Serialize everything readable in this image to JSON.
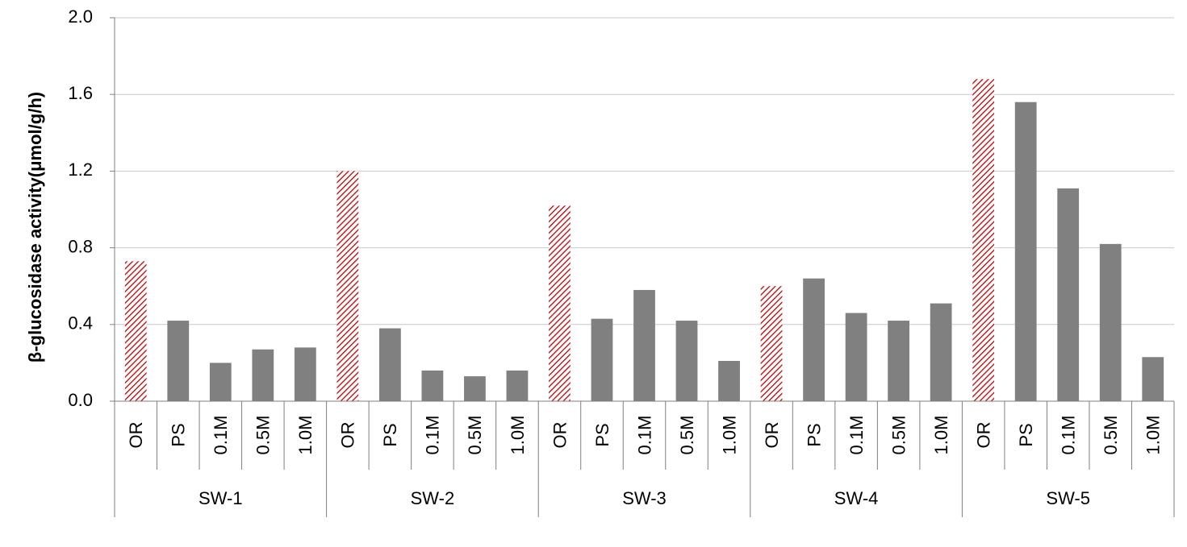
{
  "chart_data": {
    "type": "bar",
    "title": "",
    "xlabel": "",
    "ylabel": "β-glucosidase activity(μmol/g/h)",
    "ylim": [
      0,
      2.0
    ],
    "yticks": [
      "0.0",
      "0.4",
      "0.8",
      "1.2",
      "1.6",
      "2.0"
    ],
    "grid": true,
    "legend": "none",
    "groups": [
      "SW-1",
      "SW-2",
      "SW-3",
      "SW-4",
      "SW-5"
    ],
    "categories": [
      "OR",
      "PS",
      "0.1M",
      "0.5M",
      "1.0M"
    ],
    "values": [
      [
        0.73,
        0.42,
        0.2,
        0.27,
        0.28
      ],
      [
        1.2,
        0.38,
        0.16,
        0.13,
        0.16
      ],
      [
        1.02,
        0.43,
        0.58,
        0.42,
        0.21
      ],
      [
        0.6,
        0.64,
        0.46,
        0.42,
        0.51
      ],
      [
        1.68,
        1.56,
        1.11,
        0.82,
        0.23
      ]
    ],
    "colors": {
      "solid": "#808080",
      "hatch": "#c00000"
    }
  }
}
